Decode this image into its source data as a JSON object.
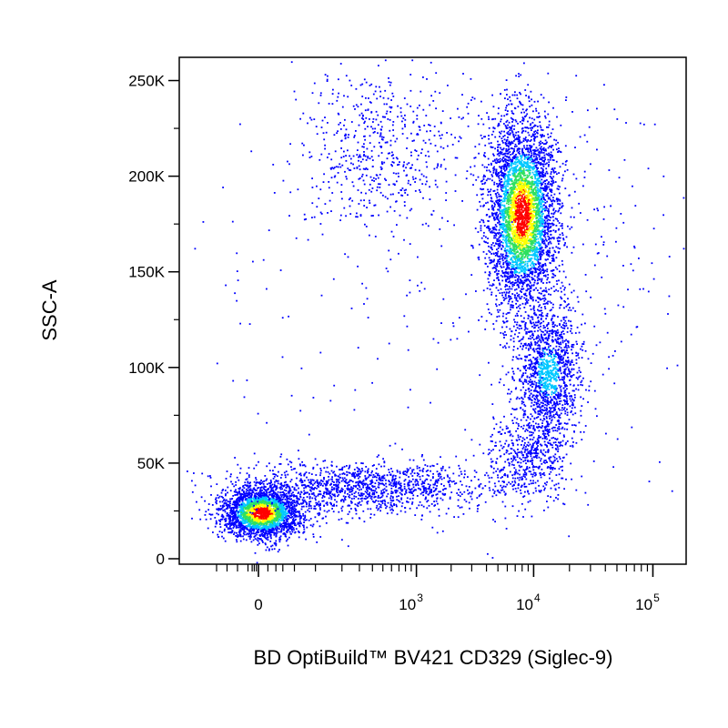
{
  "chart_data": {
    "type": "scatter",
    "title": "",
    "xlabel": "BD OptiBuild™ BV421 CD329 (Siglec-9)",
    "ylabel": "SSC-A",
    "x_scale": "biexponential",
    "ylim": [
      0,
      262144
    ],
    "y_ticks": [
      {
        "value": 0,
        "label": "0"
      },
      {
        "value": 50000,
        "label": "50K"
      },
      {
        "value": 100000,
        "label": "100K"
      },
      {
        "value": 150000,
        "label": "150K"
      },
      {
        "value": 200000,
        "label": "200K"
      },
      {
        "value": 250000,
        "label": "250K"
      }
    ],
    "x_ticks": [
      {
        "value": 0,
        "base": "0",
        "exp": ""
      },
      {
        "value": 1000,
        "base": "10",
        "exp": "3"
      },
      {
        "value": 10000,
        "base": "10",
        "exp": "4"
      },
      {
        "value": 100000,
        "base": "10",
        "exp": "5"
      }
    ],
    "grid": false,
    "color_scale": "density (blue → cyan → green → yellow → red)",
    "colors": [
      "#0000ff",
      "#00c8ff",
      "#2fe060",
      "#ffff00",
      "#ff0000"
    ],
    "populations": [
      {
        "x_center": 0,
        "y_center": 27000,
        "n": 2600
      },
      {
        "x_center": 9500,
        "y_center": 185000,
        "n": 4200
      },
      {
        "x_center": 17000,
        "y_center": 100000,
        "n": 1400
      },
      {
        "x_center": 800,
        "y_center": 225000,
        "n": 600
      },
      {
        "x_center": 700,
        "y_center": 38000,
        "n": 1300
      }
    ]
  }
}
